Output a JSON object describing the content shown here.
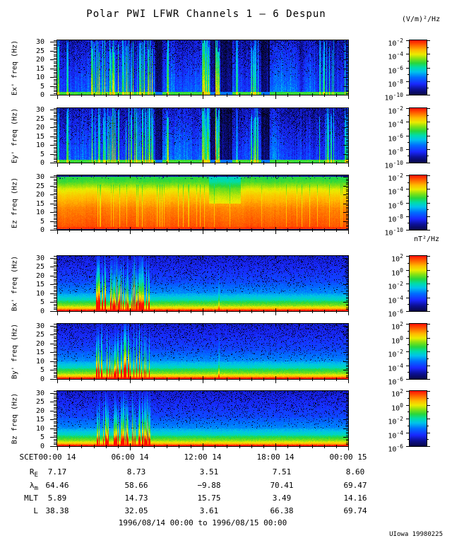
{
  "title": "Polar PWI LFWR Channels 1 — 6 Despun",
  "credit": "UIowa 19980225",
  "footer_range": "1996/08/14 00:00 to 1996/08/15 00:00",
  "chart_data": {
    "type": "heatmap",
    "description": "Six 0-31 Hz spectrogram panels over 24 hours, 1996/08/14",
    "x_axis": {
      "prefix": "SCET",
      "tick_labels": [
        "00:00 14",
        "06:00 14",
        "12:00 14",
        "18:00 14",
        "00:00 15"
      ],
      "tick_hours": [
        0,
        6,
        12,
        18,
        24
      ],
      "range_hours": [
        0,
        24
      ],
      "minor_step_hours": 1
    },
    "y_axis": {
      "tick_values": [
        0,
        5,
        10,
        15,
        20,
        25,
        30
      ],
      "range": [
        0,
        31
      ],
      "minor_step": 1
    },
    "colorbar_units": {
      "electric": "(V/m)²/Hz",
      "magnetic": "nT²/Hz"
    },
    "panels": [
      {
        "id": "ex",
        "label": "Ex' freq (Hz)",
        "kind": "E",
        "seed": 101,
        "colorbar_exponents": [
          "-2",
          "-4",
          "-6",
          "-8",
          "-10"
        ],
        "bursts": [
          {
            "a": 0.0,
            "b": 0.006,
            "s": 0.3
          },
          {
            "a": 0.03,
            "b": 0.037,
            "s": 0.3
          },
          {
            "a": 0.115,
            "b": 0.33,
            "s": 0.38,
            "d": 0.45
          },
          {
            "a": 0.375,
            "b": 0.383,
            "s": 0.35
          },
          {
            "a": 0.497,
            "b": 0.524,
            "s": 0.36
          },
          {
            "a": 0.543,
            "b": 0.558,
            "s": 0.46
          },
          {
            "a": 0.612,
            "b": 0.62,
            "s": 0.28
          },
          {
            "a": 0.663,
            "b": 0.69,
            "s": 0.33,
            "d": 0.6
          },
          {
            "a": 0.9,
            "b": 0.95,
            "s": 0.33,
            "d": 0.5
          },
          {
            "a": 0.985,
            "b": 1.0,
            "s": 0.3,
            "d": 0.7
          }
        ],
        "gaps": [
          {
            "a": 0.335,
            "b": 0.36
          },
          {
            "a": 0.525,
            "b": 0.542
          },
          {
            "a": 0.56,
            "b": 0.6
          },
          {
            "a": 0.7,
            "b": 0.73
          }
        ]
      },
      {
        "id": "ey",
        "label": "Ey' freq (Hz)",
        "kind": "E",
        "seed": 202,
        "colorbar_exponents": [
          "-2",
          "-4",
          "-6",
          "-8",
          "-10"
        ],
        "bursts": [
          {
            "a": 0.0,
            "b": 0.006,
            "s": 0.28
          },
          {
            "a": 0.03,
            "b": 0.037,
            "s": 0.28
          },
          {
            "a": 0.115,
            "b": 0.33,
            "s": 0.36,
            "d": 0.45
          },
          {
            "a": 0.375,
            "b": 0.383,
            "s": 0.34
          },
          {
            "a": 0.497,
            "b": 0.524,
            "s": 0.38
          },
          {
            "a": 0.543,
            "b": 0.558,
            "s": 0.52
          },
          {
            "a": 0.612,
            "b": 0.62,
            "s": 0.27
          },
          {
            "a": 0.663,
            "b": 0.69,
            "s": 0.32,
            "d": 0.6
          },
          {
            "a": 0.9,
            "b": 0.95,
            "s": 0.34,
            "d": 0.5
          },
          {
            "a": 0.985,
            "b": 1.0,
            "s": 0.3,
            "d": 0.7
          }
        ],
        "gaps": [
          {
            "a": 0.335,
            "b": 0.36
          },
          {
            "a": 0.525,
            "b": 0.542
          },
          {
            "a": 0.56,
            "b": 0.6
          },
          {
            "a": 0.7,
            "b": 0.73
          }
        ]
      },
      {
        "id": "ez",
        "label": "Ez freq (Hz)",
        "kind": "Ez",
        "seed": 303,
        "colorbar_exponents": [
          "-2",
          "-4",
          "-6",
          "-8",
          "-10"
        ],
        "green_dip": {
          "a": 0.52,
          "b": 0.63
        }
      },
      {
        "id": "bx",
        "label": "Bx' freq (Hz)",
        "kind": "B",
        "seed": 404,
        "colorbar_exponents": [
          "2",
          "0",
          "-2",
          "-4",
          "-6"
        ],
        "bursts": [
          {
            "a": 0.131,
            "b": 0.318,
            "s": 0.55,
            "d": 0.5
          },
          {
            "a": 0.552,
            "b": 0.558,
            "s": 0.12,
            "d": 1.0
          }
        ]
      },
      {
        "id": "by",
        "label": "By' freq (Hz)",
        "kind": "B",
        "seed": 505,
        "colorbar_exponents": [
          "2",
          "0",
          "-2",
          "-4",
          "-6"
        ],
        "bursts": [
          {
            "a": 0.131,
            "b": 0.318,
            "s": 0.55,
            "d": 0.5
          },
          {
            "a": 0.552,
            "b": 0.558,
            "s": 0.1,
            "d": 1.0
          }
        ]
      },
      {
        "id": "bz",
        "label": "Bz freq (Hz)",
        "kind": "B",
        "seed": 606,
        "colorbar_exponents": [
          "2",
          "0",
          "-2",
          "-4",
          "-6"
        ],
        "bursts": [
          {
            "a": 0.131,
            "b": 0.318,
            "s": 0.5,
            "d": 0.5
          }
        ]
      }
    ],
    "ephemeris": {
      "rows": [
        {
          "label": "R",
          "sub": "E",
          "values": [
            "7.17",
            "8.73",
            "3.51",
            "7.51",
            "8.60"
          ]
        },
        {
          "label": "λ",
          "sub": "m",
          "values": [
            "64.46",
            "58.66",
            "−9.88",
            "70.41",
            "69.47"
          ]
        },
        {
          "label": "MLT",
          "sub": "",
          "values": [
            "5.89",
            "14.73",
            "15.75",
            "3.49",
            "14.16"
          ]
        },
        {
          "label": "L",
          "sub": "",
          "values": [
            "38.38",
            "32.05",
            "3.61",
            "66.38",
            "69.74"
          ]
        }
      ]
    }
  }
}
